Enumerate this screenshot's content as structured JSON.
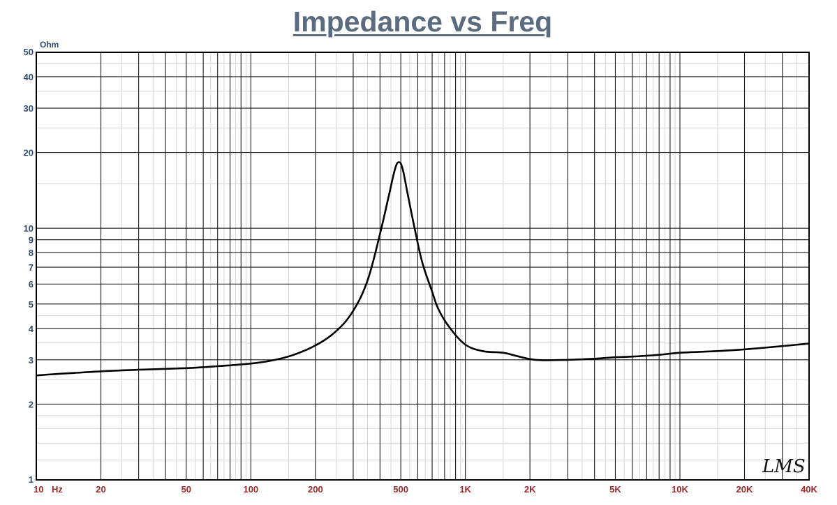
{
  "chart_data": {
    "type": "line",
    "title": "Impedance vs Freq",
    "ylabel": "Ohm",
    "xlabel": "Hz",
    "x_scale": "log",
    "y_scale": "log",
    "xlim": [
      10,
      40000
    ],
    "ylim": [
      1,
      50
    ],
    "grid": true,
    "x_ticks": [
      {
        "value": 10,
        "label": "10"
      },
      {
        "value": 20,
        "label": "20"
      },
      {
        "value": 50,
        "label": "50"
      },
      {
        "value": 100,
        "label": "100"
      },
      {
        "value": 200,
        "label": "200"
      },
      {
        "value": 500,
        "label": "500"
      },
      {
        "value": 1000,
        "label": "1K"
      },
      {
        "value": 2000,
        "label": "2K"
      },
      {
        "value": 5000,
        "label": "5K"
      },
      {
        "value": 10000,
        "label": "10K"
      },
      {
        "value": 20000,
        "label": "20K"
      },
      {
        "value": 40000,
        "label": "40K"
      }
    ],
    "y_ticks": [
      {
        "value": 1,
        "label": "1"
      },
      {
        "value": 2,
        "label": "2"
      },
      {
        "value": 3,
        "label": "3"
      },
      {
        "value": 4,
        "label": "4"
      },
      {
        "value": 5,
        "label": "5"
      },
      {
        "value": 6,
        "label": "6"
      },
      {
        "value": 7,
        "label": "7"
      },
      {
        "value": 8,
        "label": "8"
      },
      {
        "value": 9,
        "label": "9"
      },
      {
        "value": 10,
        "label": "10"
      },
      {
        "value": 20,
        "label": "20"
      },
      {
        "value": 30,
        "label": "30"
      },
      {
        "value": 40,
        "label": "40"
      },
      {
        "value": 50,
        "label": "50"
      }
    ],
    "series": [
      {
        "color": "#000000",
        "x": [
          10,
          12,
          15,
          20,
          30,
          50,
          70,
          100,
          130,
          160,
          200,
          250,
          300,
          350,
          400,
          440,
          470,
          490,
          510,
          540,
          580,
          630,
          700,
          750,
          850,
          1000,
          1200,
          1500,
          1700,
          2000,
          2300,
          3000,
          4000,
          5000,
          6000,
          8000,
          10000,
          15000,
          20000,
          30000,
          40000
        ],
        "y": [
          2.6,
          2.63,
          2.66,
          2.7,
          2.74,
          2.78,
          2.83,
          2.9,
          3.0,
          3.15,
          3.42,
          3.9,
          4.7,
          6.2,
          9.5,
          13.5,
          17.2,
          18.3,
          17.2,
          13.5,
          10.0,
          7.3,
          5.6,
          4.75,
          4.0,
          3.45,
          3.25,
          3.2,
          3.12,
          3.02,
          2.99,
          3.0,
          3.03,
          3.07,
          3.09,
          3.14,
          3.2,
          3.25,
          3.3,
          3.4,
          3.48
        ]
      }
    ]
  },
  "watermark": "LMS"
}
